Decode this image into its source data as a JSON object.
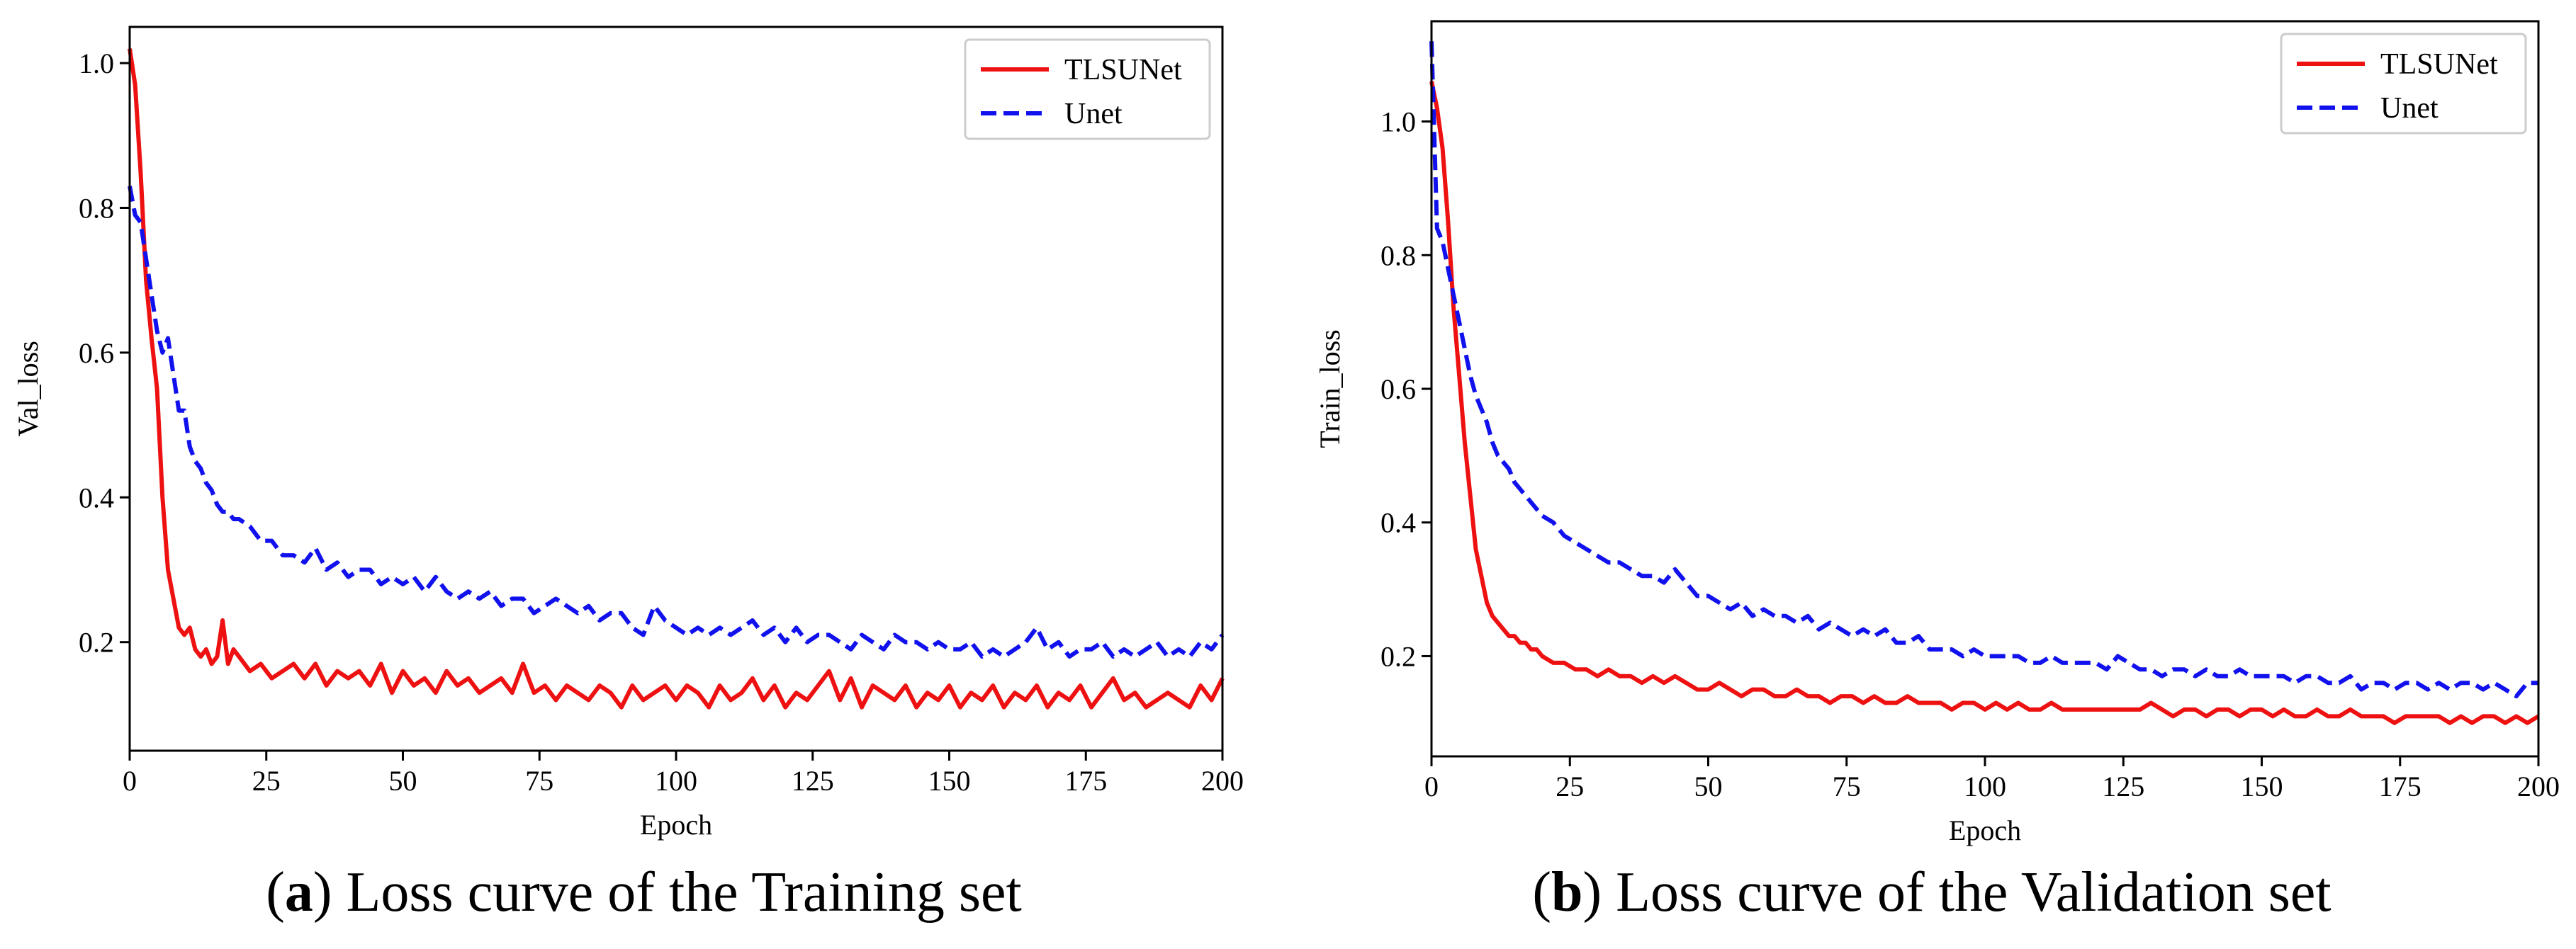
{
  "chart_data": [
    {
      "type": "line",
      "panel_label": "a",
      "caption": "Loss curve of the Training set",
      "xlabel": "Epoch",
      "ylabel": "Val_loss",
      "xlim": [
        0,
        200
      ],
      "ylim": [
        0.05,
        1.05
      ],
      "xticks": [
        0,
        25,
        50,
        75,
        100,
        125,
        150,
        175,
        200
      ],
      "yticks": [
        0.2,
        0.4,
        0.6,
        0.8,
        1.0
      ],
      "xtick_labels": [
        "0",
        "25",
        "50",
        "75",
        "100",
        "125",
        "150",
        "175",
        "200"
      ],
      "ytick_labels": [
        "0.2",
        "0.4",
        "0.6",
        "0.8",
        "1.0"
      ],
      "legend_position": "top-right",
      "series": [
        {
          "name": "TLSUNet",
          "color": "#ee1111",
          "style": "solid",
          "x": [
            0,
            1,
            2,
            3,
            4,
            5,
            6,
            7,
            8,
            9,
            10,
            11,
            12,
            13,
            14,
            15,
            16,
            17,
            18,
            19,
            20,
            22,
            24,
            26,
            28,
            30,
            32,
            34,
            36,
            38,
            40,
            42,
            44,
            46,
            48,
            50,
            52,
            54,
            56,
            58,
            60,
            62,
            64,
            66,
            68,
            70,
            72,
            74,
            76,
            78,
            80,
            82,
            84,
            86,
            88,
            90,
            92,
            94,
            96,
            98,
            100,
            102,
            104,
            106,
            108,
            110,
            112,
            114,
            116,
            118,
            120,
            122,
            124,
            126,
            128,
            130,
            132,
            134,
            136,
            138,
            140,
            142,
            144,
            146,
            148,
            150,
            152,
            154,
            156,
            158,
            160,
            162,
            164,
            166,
            168,
            170,
            172,
            174,
            176,
            178,
            180,
            182,
            184,
            186,
            188,
            190,
            192,
            194,
            196,
            198,
            200
          ],
          "values": [
            1.02,
            0.97,
            0.85,
            0.7,
            0.62,
            0.55,
            0.4,
            0.3,
            0.26,
            0.22,
            0.21,
            0.22,
            0.19,
            0.18,
            0.19,
            0.17,
            0.18,
            0.23,
            0.17,
            0.19,
            0.18,
            0.16,
            0.17,
            0.15,
            0.16,
            0.17,
            0.15,
            0.17,
            0.14,
            0.16,
            0.15,
            0.16,
            0.14,
            0.17,
            0.13,
            0.16,
            0.14,
            0.15,
            0.13,
            0.16,
            0.14,
            0.15,
            0.13,
            0.14,
            0.15,
            0.13,
            0.17,
            0.13,
            0.14,
            0.12,
            0.14,
            0.13,
            0.12,
            0.14,
            0.13,
            0.11,
            0.14,
            0.12,
            0.13,
            0.14,
            0.12,
            0.14,
            0.13,
            0.11,
            0.14,
            0.12,
            0.13,
            0.15,
            0.12,
            0.14,
            0.11,
            0.13,
            0.12,
            0.14,
            0.16,
            0.12,
            0.15,
            0.11,
            0.14,
            0.13,
            0.12,
            0.14,
            0.11,
            0.13,
            0.12,
            0.14,
            0.11,
            0.13,
            0.12,
            0.14,
            0.11,
            0.13,
            0.12,
            0.14,
            0.11,
            0.13,
            0.12,
            0.14,
            0.11,
            0.13,
            0.15,
            0.12,
            0.13,
            0.11,
            0.12,
            0.13,
            0.12,
            0.11,
            0.14,
            0.12,
            0.15
          ]
        },
        {
          "name": "Unet",
          "color": "#1111ee",
          "style": "dashed",
          "x": [
            0,
            1,
            2,
            3,
            4,
            5,
            6,
            7,
            8,
            9,
            10,
            11,
            12,
            13,
            14,
            15,
            16,
            17,
            18,
            19,
            20,
            22,
            24,
            26,
            28,
            30,
            32,
            34,
            36,
            38,
            40,
            42,
            44,
            46,
            48,
            50,
            52,
            54,
            56,
            58,
            60,
            62,
            64,
            66,
            68,
            70,
            72,
            74,
            76,
            78,
            80,
            82,
            84,
            86,
            88,
            90,
            92,
            94,
            96,
            98,
            100,
            102,
            104,
            106,
            108,
            110,
            112,
            114,
            116,
            118,
            120,
            122,
            124,
            126,
            128,
            130,
            132,
            134,
            136,
            138,
            140,
            142,
            144,
            146,
            148,
            150,
            152,
            154,
            156,
            158,
            160,
            162,
            164,
            166,
            168,
            170,
            172,
            174,
            176,
            178,
            180,
            182,
            184,
            186,
            188,
            190,
            192,
            194,
            196,
            198,
            200
          ],
          "values": [
            0.83,
            0.79,
            0.78,
            0.73,
            0.68,
            0.63,
            0.6,
            0.62,
            0.57,
            0.52,
            0.52,
            0.47,
            0.45,
            0.44,
            0.42,
            0.41,
            0.39,
            0.38,
            0.38,
            0.37,
            0.37,
            0.36,
            0.34,
            0.34,
            0.32,
            0.32,
            0.31,
            0.33,
            0.3,
            0.31,
            0.29,
            0.3,
            0.3,
            0.28,
            0.29,
            0.28,
            0.29,
            0.27,
            0.29,
            0.27,
            0.26,
            0.27,
            0.26,
            0.27,
            0.25,
            0.26,
            0.26,
            0.24,
            0.25,
            0.26,
            0.25,
            0.24,
            0.25,
            0.23,
            0.24,
            0.24,
            0.22,
            0.21,
            0.25,
            0.23,
            0.22,
            0.21,
            0.22,
            0.21,
            0.22,
            0.21,
            0.22,
            0.23,
            0.21,
            0.22,
            0.2,
            0.22,
            0.2,
            0.21,
            0.21,
            0.2,
            0.19,
            0.21,
            0.2,
            0.19,
            0.21,
            0.2,
            0.2,
            0.19,
            0.2,
            0.19,
            0.19,
            0.2,
            0.18,
            0.19,
            0.18,
            0.19,
            0.2,
            0.22,
            0.19,
            0.2,
            0.18,
            0.19,
            0.19,
            0.2,
            0.18,
            0.19,
            0.18,
            0.19,
            0.2,
            0.18,
            0.19,
            0.18,
            0.2,
            0.19,
            0.21
          ]
        }
      ]
    },
    {
      "type": "line",
      "panel_label": "b",
      "caption": "Loss curve of the Validation set",
      "xlabel": "Epoch",
      "ylabel": "Train_loss",
      "xlim": [
        0,
        200
      ],
      "ylim": [
        0.05,
        1.15
      ],
      "xticks": [
        0,
        25,
        50,
        75,
        100,
        125,
        150,
        175,
        200
      ],
      "yticks": [
        0.2,
        0.4,
        0.6,
        0.8,
        1.0
      ],
      "xtick_labels": [
        "0",
        "25",
        "50",
        "75",
        "100",
        "125",
        "150",
        "175",
        "200"
      ],
      "ytick_labels": [
        "0.2",
        "0.4",
        "0.6",
        "0.8",
        "1.0"
      ],
      "legend_position": "top-right",
      "series": [
        {
          "name": "TLSUNet",
          "color": "#ee1111",
          "style": "solid",
          "x": [
            0,
            1,
            2,
            3,
            4,
            5,
            6,
            7,
            8,
            9,
            10,
            11,
            12,
            13,
            14,
            15,
            16,
            17,
            18,
            19,
            20,
            22,
            24,
            26,
            28,
            30,
            32,
            34,
            36,
            38,
            40,
            42,
            44,
            46,
            48,
            50,
            52,
            54,
            56,
            58,
            60,
            62,
            64,
            66,
            68,
            70,
            72,
            74,
            76,
            78,
            80,
            82,
            84,
            86,
            88,
            90,
            92,
            94,
            96,
            98,
            100,
            102,
            104,
            106,
            108,
            110,
            112,
            114,
            116,
            118,
            120,
            122,
            124,
            126,
            128,
            130,
            132,
            134,
            136,
            138,
            140,
            142,
            144,
            146,
            148,
            150,
            152,
            154,
            156,
            158,
            160,
            162,
            164,
            166,
            168,
            170,
            172,
            174,
            176,
            178,
            180,
            182,
            184,
            186,
            188,
            190,
            192,
            194,
            196,
            198,
            200
          ],
          "values": [
            1.06,
            1.02,
            0.96,
            0.85,
            0.72,
            0.62,
            0.52,
            0.44,
            0.36,
            0.32,
            0.28,
            0.26,
            0.25,
            0.24,
            0.23,
            0.23,
            0.22,
            0.22,
            0.21,
            0.21,
            0.2,
            0.19,
            0.19,
            0.18,
            0.18,
            0.17,
            0.18,
            0.17,
            0.17,
            0.16,
            0.17,
            0.16,
            0.17,
            0.16,
            0.15,
            0.15,
            0.16,
            0.15,
            0.14,
            0.15,
            0.15,
            0.14,
            0.14,
            0.15,
            0.14,
            0.14,
            0.13,
            0.14,
            0.14,
            0.13,
            0.14,
            0.13,
            0.13,
            0.14,
            0.13,
            0.13,
            0.13,
            0.12,
            0.13,
            0.13,
            0.12,
            0.13,
            0.12,
            0.13,
            0.12,
            0.12,
            0.13,
            0.12,
            0.12,
            0.12,
            0.12,
            0.12,
            0.12,
            0.12,
            0.12,
            0.13,
            0.12,
            0.11,
            0.12,
            0.12,
            0.11,
            0.12,
            0.12,
            0.11,
            0.12,
            0.12,
            0.11,
            0.12,
            0.11,
            0.11,
            0.12,
            0.11,
            0.11,
            0.12,
            0.11,
            0.11,
            0.11,
            0.1,
            0.11,
            0.11,
            0.11,
            0.11,
            0.1,
            0.11,
            0.1,
            0.11,
            0.11,
            0.1,
            0.11,
            0.1,
            0.11
          ]
        },
        {
          "name": "Unet",
          "color": "#1111ee",
          "style": "dashed",
          "x": [
            0,
            1,
            2,
            3,
            4,
            5,
            6,
            7,
            8,
            9,
            10,
            11,
            12,
            13,
            14,
            15,
            16,
            17,
            18,
            19,
            20,
            22,
            24,
            26,
            28,
            30,
            32,
            34,
            36,
            38,
            40,
            42,
            44,
            46,
            48,
            50,
            52,
            54,
            56,
            58,
            60,
            62,
            64,
            66,
            68,
            70,
            72,
            74,
            76,
            78,
            80,
            82,
            84,
            86,
            88,
            90,
            92,
            94,
            96,
            98,
            100,
            102,
            104,
            106,
            108,
            110,
            112,
            114,
            116,
            118,
            120,
            122,
            124,
            126,
            128,
            130,
            132,
            134,
            136,
            138,
            140,
            142,
            144,
            146,
            148,
            150,
            152,
            154,
            156,
            158,
            160,
            162,
            164,
            166,
            168,
            170,
            172,
            174,
            176,
            178,
            180,
            182,
            184,
            186,
            188,
            190,
            192,
            194,
            196,
            198,
            200
          ],
          "values": [
            1.12,
            0.84,
            0.82,
            0.78,
            0.74,
            0.7,
            0.66,
            0.62,
            0.59,
            0.57,
            0.55,
            0.52,
            0.5,
            0.49,
            0.48,
            0.46,
            0.45,
            0.44,
            0.43,
            0.42,
            0.41,
            0.4,
            0.38,
            0.37,
            0.36,
            0.35,
            0.34,
            0.34,
            0.33,
            0.32,
            0.32,
            0.31,
            0.33,
            0.31,
            0.29,
            0.29,
            0.28,
            0.27,
            0.28,
            0.26,
            0.27,
            0.26,
            0.26,
            0.25,
            0.26,
            0.24,
            0.25,
            0.24,
            0.23,
            0.24,
            0.23,
            0.24,
            0.22,
            0.22,
            0.23,
            0.21,
            0.21,
            0.21,
            0.2,
            0.21,
            0.2,
            0.2,
            0.2,
            0.2,
            0.19,
            0.19,
            0.2,
            0.19,
            0.19,
            0.19,
            0.19,
            0.18,
            0.2,
            0.19,
            0.18,
            0.18,
            0.17,
            0.18,
            0.18,
            0.17,
            0.18,
            0.17,
            0.17,
            0.18,
            0.17,
            0.17,
            0.17,
            0.17,
            0.16,
            0.17,
            0.17,
            0.16,
            0.16,
            0.17,
            0.15,
            0.16,
            0.16,
            0.15,
            0.16,
            0.16,
            0.15,
            0.16,
            0.15,
            0.16,
            0.16,
            0.15,
            0.16,
            0.15,
            0.14,
            0.16,
            0.16
          ]
        }
      ]
    }
  ]
}
